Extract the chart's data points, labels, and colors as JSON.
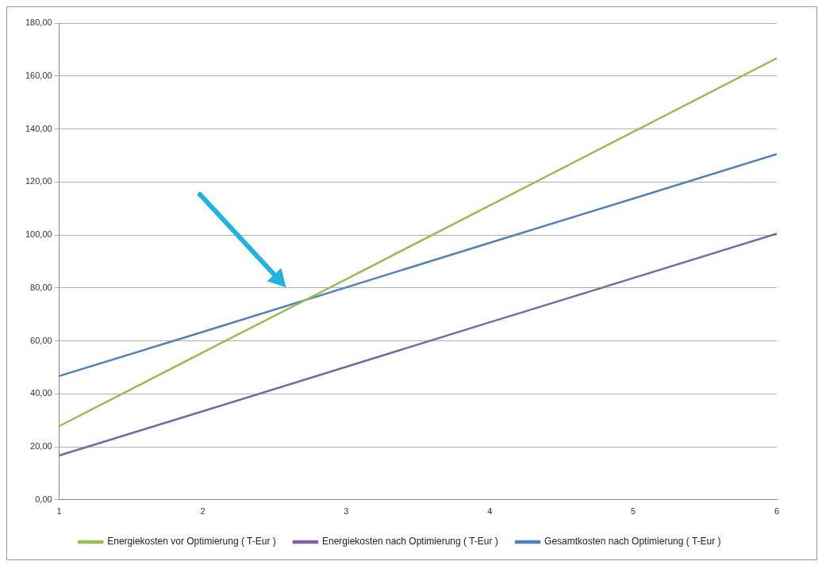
{
  "chart_data": {
    "type": "line",
    "x": [
      1,
      2,
      3,
      4,
      5,
      6
    ],
    "series": [
      {
        "name": "Energiekosten vor Optimierung ( T-Eur )",
        "color": "#9bbb59",
        "values": [
          27.8,
          55.6,
          83.3,
          111.1,
          138.9,
          166.7
        ]
      },
      {
        "name": "Energiekosten nach Optimierung ( T-Eur )",
        "color": "#8064a2",
        "values": [
          16.7,
          33.4,
          50.2,
          67.0,
          83.7,
          100.5
        ]
      },
      {
        "name": "Gesamtkosten nach Optimierung ( T-Eur )",
        "color": "#4f81bd",
        "values": [
          46.7,
          63.4,
          80.2,
          97.0,
          113.7,
          130.5
        ]
      }
    ],
    "xlim": [
      1,
      6
    ],
    "xticks": [
      1,
      2,
      3,
      4,
      5,
      6
    ],
    "ylim": [
      0,
      180
    ],
    "yticks": [
      {
        "value": 0,
        "label": "0,00"
      },
      {
        "value": 20,
        "label": "20,00"
      },
      {
        "value": 40,
        "label": "40,00"
      },
      {
        "value": 60,
        "label": "60,00"
      },
      {
        "value": 80,
        "label": "80,00"
      },
      {
        "value": 100,
        "label": "100,00"
      },
      {
        "value": 120,
        "label": "120,00"
      },
      {
        "value": 140,
        "label": "140,00"
      },
      {
        "value": 160,
        "label": "160,00"
      },
      {
        "value": 180,
        "label": "180,00"
      }
    ],
    "grid": "y",
    "legend": "bottom",
    "marker": "none",
    "line_style": "solid"
  }
}
